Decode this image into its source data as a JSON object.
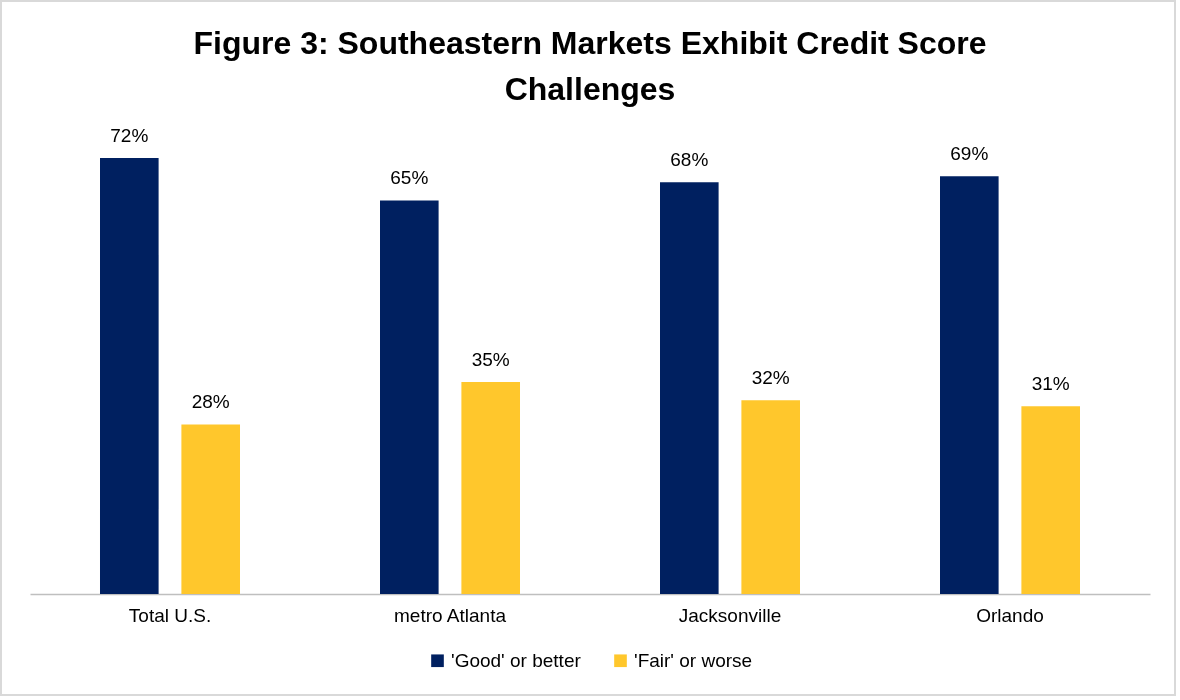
{
  "chart_data": {
    "type": "bar",
    "title": "Figure 3: Southeastern Markets Exhibit Credit Score Challenges",
    "categories": [
      "Total U.S.",
      "metro Atlanta",
      "Jacksonville",
      "Orlando"
    ],
    "series": [
      {
        "name": "'Good' or better",
        "color": "#002060",
        "values": [
          72,
          65,
          68,
          69
        ],
        "value_labels": [
          "72%",
          "65%",
          "68%",
          "69%"
        ]
      },
      {
        "name": "'Fair' or worse",
        "color": "#ffc72c",
        "values": [
          28,
          35,
          32,
          31
        ],
        "value_labels": [
          "28%",
          "35%",
          "32%",
          "31%"
        ]
      }
    ],
    "legend": "bottom"
  }
}
